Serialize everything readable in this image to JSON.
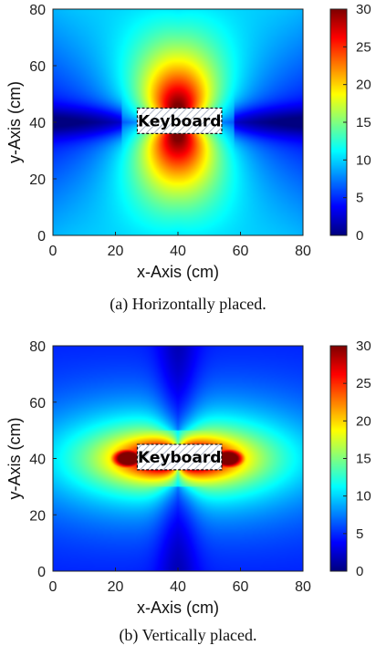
{
  "chart_data": [
    {
      "type": "heatmap",
      "caption": "(a)  Horizontally placed.",
      "xlabel": "x-Axis (cm)",
      "ylabel": "y-Axis (cm)",
      "xlim": [
        0,
        80
      ],
      "ylim": [
        0,
        80
      ],
      "xticks": [
        "0",
        "20",
        "40",
        "60",
        "80"
      ],
      "yticks": [
        "0",
        "20",
        "40",
        "60",
        "80"
      ],
      "colorbar": {
        "min": 0,
        "max": 30,
        "ticks": [
          "0",
          "5",
          "10",
          "15",
          "20",
          "25",
          "30"
        ],
        "colormap": "jet"
      },
      "annotation": {
        "text": "Keyboard",
        "x_range": [
          27,
          54
        ],
        "y_range": [
          36,
          45
        ]
      },
      "field": {
        "orientation": "horizontal",
        "center": [
          40,
          40
        ],
        "peak_value": 30,
        "description_values": {
          "near_keyboard": 30,
          "corners": 8,
          "left_right_edges_at_y40": 3
        }
      }
    },
    {
      "type": "heatmap",
      "caption": "(b)  Vertically placed.",
      "xlabel": "x-Axis (cm)",
      "ylabel": "y-Axis (cm)",
      "xlim": [
        0,
        80
      ],
      "ylim": [
        0,
        80
      ],
      "xticks": [
        "0",
        "20",
        "40",
        "60",
        "80"
      ],
      "yticks": [
        "0",
        "20",
        "40",
        "60",
        "80"
      ],
      "colorbar": {
        "min": 0,
        "max": 30,
        "ticks": [
          "0",
          "5",
          "10",
          "15",
          "20",
          "25",
          "30"
        ],
        "colormap": "jet"
      },
      "annotation": {
        "text": "Keyboard",
        "x_range": [
          27,
          54
        ],
        "y_range": [
          36,
          45
        ]
      },
      "field": {
        "orientation": "vertical",
        "center": [
          40,
          40
        ],
        "peak_value": 30,
        "description_values": {
          "keyboard_ends": 30,
          "background": 5,
          "top_bottom_center": 3
        }
      }
    }
  ]
}
